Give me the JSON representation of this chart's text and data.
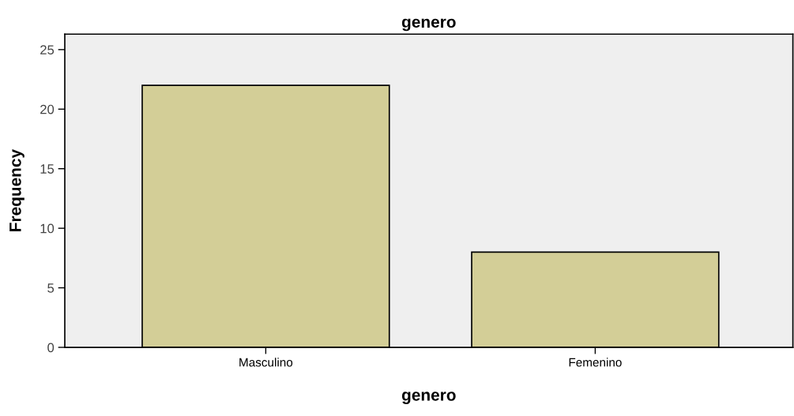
{
  "chart_data": {
    "type": "bar",
    "title": "genero",
    "xlabel": "genero",
    "ylabel": "Frequency",
    "categories": [
      "Masculino",
      "Femenino"
    ],
    "series": [
      {
        "color": "#d3ce97",
        "values": [
          22,
          8
        ]
      }
    ],
    "ylim": [
      0,
      26.3
    ],
    "yticks": [
      0,
      5,
      10,
      15,
      20,
      25
    ],
    "grid": false,
    "legend": false
  }
}
